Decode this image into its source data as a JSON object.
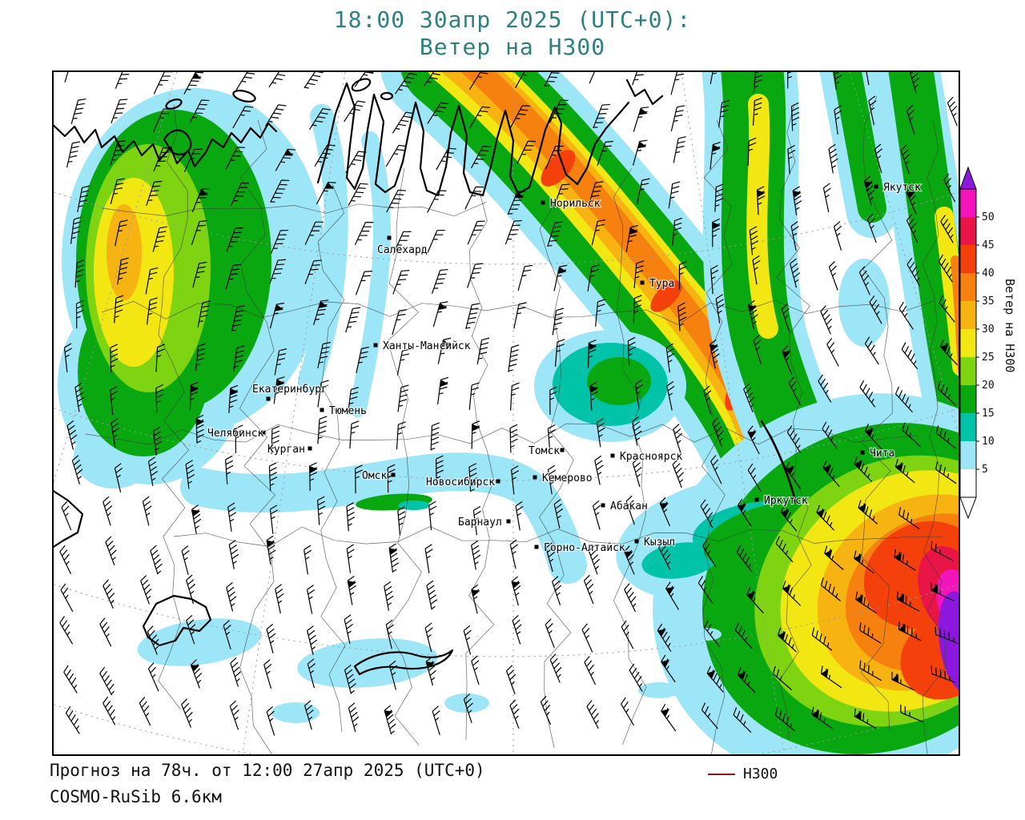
{
  "title": {
    "line1": "18:00 30апр 2025 (UTC+0):",
    "line2": "Ветер на H300"
  },
  "footer": {
    "forecast_line": "Прогноз на 78ч. от 12:00 27апр 2025 (UTC+0)",
    "model_line": "COSMO-RuSib 6.6км",
    "legend_label": "H300",
    "legend_line_color": "#8b1818"
  },
  "colorbar": {
    "axis_label": "Ветер на H300",
    "ticks": [
      "50",
      "45",
      "40",
      "35",
      "30",
      "25",
      "20",
      "15",
      "10",
      "5"
    ],
    "palette": {
      "5": "#9ce6f7",
      "10": "#00c3a8",
      "15": "#0aa810",
      "20": "#7fd412",
      "25": "#f2e713",
      "30": "#f7b312",
      "35": "#f7810e",
      "40": "#f4410c",
      "45": "#e91547",
      "50": "#f314bc",
      "55": "#8c17dd"
    },
    "arrow_top_color": "#8c17dd",
    "arrow_bottom_color": "#ffffff",
    "below_min_color": "#ffffff"
  },
  "map": {
    "cities": [
      {
        "name": "Норильск",
        "dot": [
          611,
          163
        ],
        "label": [
          620,
          168
        ]
      },
      {
        "name": "Салехард",
        "dot": [
          419,
          207
        ],
        "label": [
          404,
          226
        ]
      },
      {
        "name": "Тура",
        "dot": [
          735,
          263
        ],
        "label": [
          744,
          268
        ]
      },
      {
        "name": "Якутск",
        "dot": [
          1027,
          143
        ],
        "label": [
          1036,
          148
        ]
      },
      {
        "name": "Ханты-Мансийск",
        "dot": [
          402,
          341
        ],
        "label": [
          411,
          346
        ]
      },
      {
        "name": "Екатеринбург",
        "dot": [
          268,
          408
        ],
        "label": [
          248,
          400
        ]
      },
      {
        "name": "Тюмень",
        "dot": [
          335,
          422
        ],
        "label": [
          344,
          427
        ]
      },
      {
        "name": "Челябинск",
        "dot": [
          262,
          450
        ],
        "label": [
          192,
          455
        ]
      },
      {
        "name": "Курган",
        "dot": [
          320,
          470
        ],
        "label": [
          267,
          475
        ]
      },
      {
        "name": "Омск",
        "dot": [
          424,
          503
        ],
        "label": [
          385,
          508
        ]
      },
      {
        "name": "Новосибирск",
        "dot": [
          555,
          511
        ],
        "label": [
          465,
          516
        ]
      },
      {
        "name": "Томск",
        "dot": [
          635,
          472
        ],
        "label": [
          593,
          477
        ]
      },
      {
        "name": "Кемерово",
        "dot": [
          601,
          506
        ],
        "label": [
          610,
          511
        ]
      },
      {
        "name": "Красноярск",
        "dot": [
          698,
          479
        ],
        "label": [
          707,
          484
        ]
      },
      {
        "name": "Абакан",
        "dot": [
          686,
          541
        ],
        "label": [
          695,
          546
        ]
      },
      {
        "name": "Барнаул",
        "dot": [
          568,
          561
        ],
        "label": [
          505,
          566
        ]
      },
      {
        "name": "Горно-Алтайск",
        "dot": [
          603,
          593
        ],
        "label": [
          612,
          598
        ]
      },
      {
        "name": "Кызыл",
        "dot": [
          728,
          586
        ],
        "label": [
          737,
          591
        ]
      },
      {
        "name": "Иркутск",
        "dot": [
          878,
          534
        ],
        "label": [
          887,
          539
        ]
      },
      {
        "name": "Чита",
        "dot": [
          1010,
          475
        ],
        "label": [
          1019,
          480
        ]
      }
    ]
  }
}
